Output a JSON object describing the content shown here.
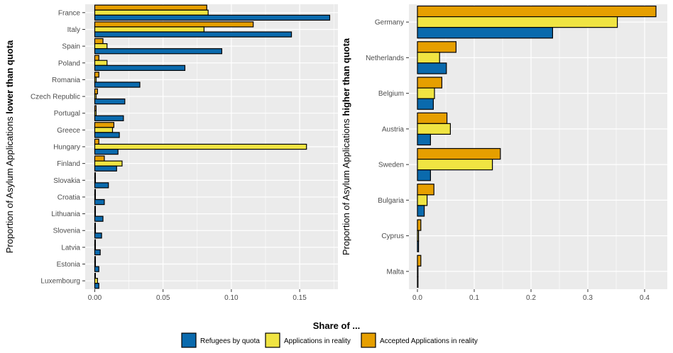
{
  "colors": {
    "panel_bg": "#ebebeb",
    "grid": "#ffffff",
    "Refugees by quota": "#0a6aad",
    "Applications in reality": "#f0e442",
    "Accepted Applications in reality": "#e69f00"
  },
  "legend": {
    "title": "Share of ...",
    "items": [
      "Refugees by quota",
      "Applications in reality",
      "Accepted Applications in reality"
    ]
  },
  "chart_data": [
    {
      "type": "bar",
      "orientation": "horizontal",
      "ylabel_prefix": "Proportion of Asylum Applications ",
      "ylabel_bold": "lower than quota",
      "xlim": [
        -0.007,
        0.178
      ],
      "xticks": [
        0.0,
        0.05,
        0.1,
        0.15
      ],
      "xtick_labels": [
        "0.00",
        "0.05",
        "0.10",
        "0.15"
      ],
      "categories": [
        "France",
        "Italy",
        "Spain",
        "Poland",
        "Romania",
        "Czech Republic",
        "Portugal",
        "Greece",
        "Hungary",
        "Finland",
        "Slovakia",
        "Croatia",
        "Lithuania",
        "Slovenia",
        "Latvia",
        "Estonia",
        "Luxembourg"
      ],
      "series": [
        {
          "name": "Accepted Applications in reality",
          "values": [
            0.082,
            0.116,
            0.006,
            0.003,
            0.003,
            0.002,
            0.001,
            0.014,
            0.003,
            0.007,
            0.0005,
            0.0005,
            0.0005,
            0.0005,
            0.0005,
            0.0005,
            0.0005
          ]
        },
        {
          "name": "Applications in reality",
          "values": [
            0.083,
            0.08,
            0.009,
            0.009,
            0.001,
            0.001,
            0.001,
            0.013,
            0.155,
            0.02,
            0.0005,
            0.0005,
            0.0005,
            0.0005,
            0.0005,
            0.0005,
            0.002
          ]
        },
        {
          "name": "Refugees by quota",
          "values": [
            0.172,
            0.144,
            0.093,
            0.066,
            0.033,
            0.022,
            0.021,
            0.018,
            0.017,
            0.016,
            0.01,
            0.007,
            0.006,
            0.005,
            0.004,
            0.003,
            0.003
          ]
        }
      ]
    },
    {
      "type": "bar",
      "orientation": "horizontal",
      "ylabel_prefix": "Proportion of Asylum Applications ",
      "ylabel_bold": "higher than quota",
      "xlim": [
        -0.015,
        0.44
      ],
      "xticks": [
        0.0,
        0.1,
        0.2,
        0.3,
        0.4
      ],
      "xtick_labels": [
        "0.0",
        "0.1",
        "0.2",
        "0.3",
        "0.4"
      ],
      "categories": [
        "Germany",
        "Netherlands",
        "Belgium",
        "Austria",
        "Sweden",
        "Bulgaria",
        "Cyprus",
        "Malta"
      ],
      "series": [
        {
          "name": "Accepted Applications in reality",
          "values": [
            0.42,
            0.068,
            0.043,
            0.052,
            0.146,
            0.029,
            0.006,
            0.006
          ]
        },
        {
          "name": "Applications in reality",
          "values": [
            0.352,
            0.039,
            0.03,
            0.058,
            0.132,
            0.017,
            0.002,
            0.001
          ]
        },
        {
          "name": "Refugees by quota",
          "values": [
            0.238,
            0.051,
            0.028,
            0.023,
            0.023,
            0.012,
            0.002,
            0.001
          ]
        }
      ]
    }
  ]
}
